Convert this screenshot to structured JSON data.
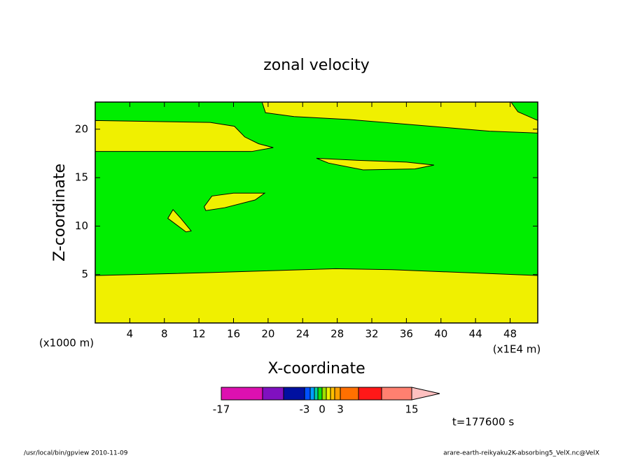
{
  "chart_data": {
    "type": "contour",
    "title": "zonal velocity",
    "x_label": "X-coordinate",
    "y_label": "Z-coordinate",
    "x_unit": "(x1E4 m)",
    "y_unit": "(x1000 m)",
    "xlim": [
      0,
      51.2
    ],
    "ylim": [
      0,
      22.8
    ],
    "xticks": [
      4,
      8,
      12,
      16,
      20,
      24,
      28,
      32,
      36,
      40,
      44,
      48
    ],
    "yticks": [
      5,
      10,
      15,
      20
    ],
    "background_color": "#00ee00",
    "regions": [
      {
        "color": "#f0f000",
        "x": [
          0,
          0,
          13.3,
          27.8,
          34.3,
          51.2,
          51.2
        ],
        "y": [
          0,
          4.9,
          5.2,
          5.6,
          5.5,
          4.9,
          0
        ]
      },
      {
        "color": "#f0f000",
        "x": [
          0,
          13.3,
          16.1,
          17.3,
          18.9,
          20.6,
          18.1,
          0
        ],
        "y": [
          20.9,
          20.7,
          20.3,
          19.2,
          18.5,
          18.1,
          17.7,
          17.7
        ]
      },
      {
        "color": "#f0f000",
        "x": [
          19.3,
          19.7,
          23,
          29.4,
          37.5,
          45.6,
          51.2,
          51.2,
          48.9,
          48.1
        ],
        "y": [
          22.8,
          21.7,
          21.3,
          21,
          20.4,
          19.8,
          19.6,
          20.9,
          21.8,
          22.8
        ]
      },
      {
        "color": "#f0f000",
        "x": [
          25.6,
          30,
          36,
          39.2,
          37,
          31,
          27
        ],
        "y": [
          17.0,
          16.8,
          16.6,
          16.3,
          15.9,
          15.8,
          16.5
        ]
      },
      {
        "color": "#f0f000",
        "x": [
          12.6,
          13.5,
          16,
          19.6,
          18.5,
          15,
          12.8
        ],
        "y": [
          12.0,
          13.1,
          13.4,
          13.4,
          12.7,
          11.9,
          11.6
        ]
      },
      {
        "color": "#f0f000",
        "x": [
          8.4,
          9.0,
          9.9,
          11.1,
          10.5
        ],
        "y": [
          10.8,
          11.7,
          10.8,
          9.5,
          9.4
        ]
      }
    ],
    "colorbar": {
      "levels": [
        -17,
        -10,
        -6,
        -3,
        -2,
        -1,
        -0.5,
        0,
        0.5,
        1,
        2,
        3,
        6,
        9,
        15
      ],
      "colors": [
        "#dd10b0",
        "#8010c0",
        "#0010a0",
        "#0050ff",
        "#00a0ff",
        "#00d0a0",
        "#10e010",
        "#a0e000",
        "#f0f000",
        "#ffc000",
        "#ffa000",
        "#ff7000",
        "#ff1818",
        "#ff8070"
      ],
      "extend_color": "#ffc0c0",
      "ticks": [
        -17,
        -3,
        0,
        3,
        15
      ]
    },
    "annotation": "t=177600 s",
    "footer_left": "/usr/local/bin/gpview  2010-11-09",
    "footer_right": "arare-earth-reikyaku2K-absorbing5_VelX.nc@VelX"
  }
}
